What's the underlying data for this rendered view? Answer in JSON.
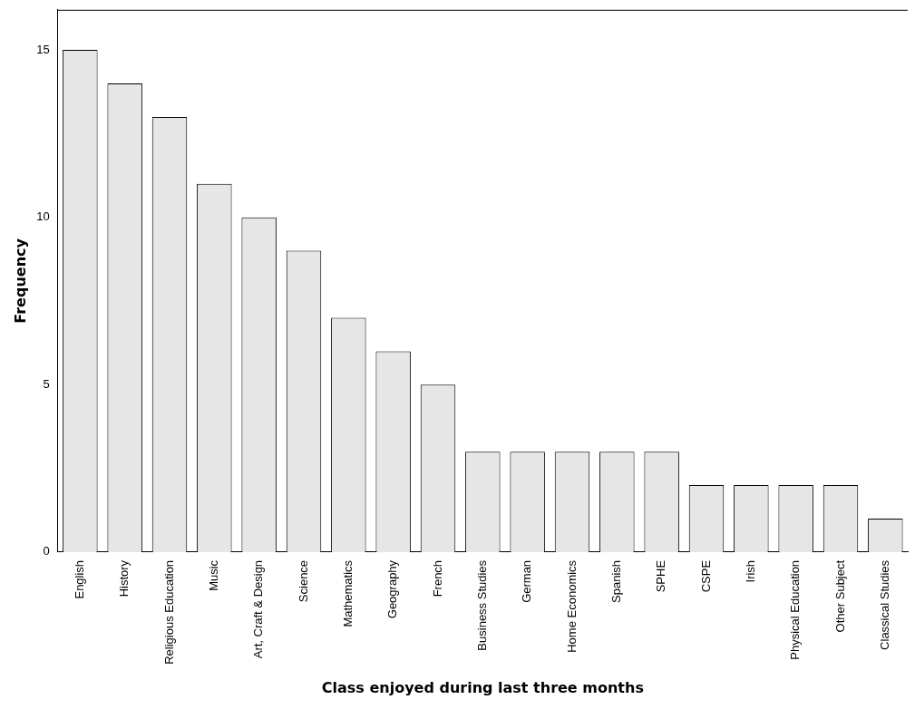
{
  "chart_data": {
    "type": "bar",
    "xlabel": "Class enjoyed during last three months",
    "ylabel": "Frequency",
    "categories": [
      "English",
      "History",
      "Religious Education",
      "Music",
      "Art, Craft & Design",
      "Science",
      "Mathematics",
      "Geography",
      "French",
      "Business Studies",
      "German",
      "Home Economics",
      "Spanish",
      "SPHE",
      "CSPE",
      "Irish",
      "Physical Education",
      "Other Subject",
      "Classical Studies"
    ],
    "values": [
      15,
      14,
      13,
      11,
      10,
      9,
      7,
      6,
      5,
      3,
      3,
      3,
      3,
      3,
      2,
      2,
      2,
      2,
      1
    ],
    "color": "#e6e6e6",
    "ylim": [
      0,
      16.2
    ],
    "yticks": [
      0,
      5,
      10,
      15
    ],
    "grid": false,
    "legend": false
  }
}
